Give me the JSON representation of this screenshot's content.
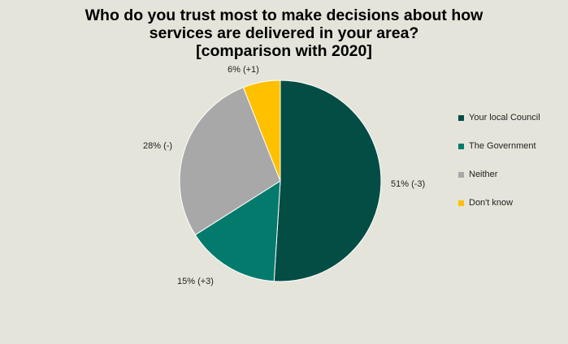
{
  "chart_data": {
    "type": "pie",
    "title": [
      "Who do you trust most to make decisions about how",
      "services are delivered in your area?",
      "[comparison with 2020]"
    ],
    "slices": [
      {
        "name": "Your local Council",
        "value": 51,
        "label": "51% (-3)",
        "color": "#034d45"
      },
      {
        "name": "The Government",
        "value": 15,
        "label": "15% (+3)",
        "color": "#047a6c"
      },
      {
        "name": "Neither",
        "value": 28,
        "label": "28% (-)",
        "color": "#a8a8a8"
      },
      {
        "name": "Don't know",
        "value": 6,
        "label": "6% (+1)",
        "color": "#ffc000"
      }
    ],
    "legend_position": "right"
  }
}
